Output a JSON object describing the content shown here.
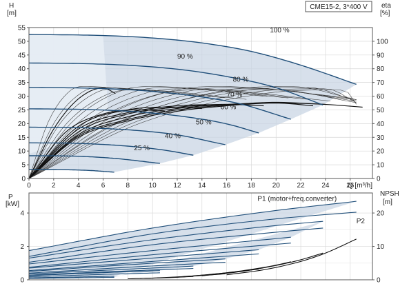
{
  "chart_data": [
    {
      "type": "line",
      "legend_box": "CME15-2, 3*400 V",
      "left_axis": {
        "label": "H",
        "unit": "[m]",
        "ylim": [
          0,
          55
        ],
        "ticks": [
          0,
          5,
          10,
          15,
          20,
          25,
          30,
          35,
          40,
          45,
          50,
          55
        ]
      },
      "right_axis": {
        "label": "eta",
        "unit": "[%]",
        "ylim": [
          0,
          110
        ],
        "ticks": [
          0,
          10,
          20,
          30,
          40,
          50,
          60,
          70,
          80,
          90,
          100
        ]
      },
      "x_axis": {
        "label": "Q [m³/h]",
        "xlim": [
          0,
          27.8
        ],
        "ticks": [
          0,
          2,
          4,
          6,
          8,
          10,
          12,
          14,
          16,
          18,
          20,
          22,
          24,
          26
        ]
      },
      "speed_labels": [
        {
          "text": "100 %",
          "x": 19.5,
          "y": 52.5
        },
        {
          "text": "90 %",
          "x": 12,
          "y": 43
        },
        {
          "text": "80 %",
          "x": 16.5,
          "y": 34.5
        },
        {
          "text": "70 %",
          "x": 16,
          "y": 29
        },
        {
          "text": "60 %",
          "x": 15.5,
          "y": 24.5
        },
        {
          "text": "50 %",
          "x": 13.5,
          "y": 19
        },
        {
          "text": "40 %",
          "x": 11,
          "y": 14
        },
        {
          "text": "25 %",
          "x": 8.5,
          "y": 9.5
        }
      ],
      "head_curves": [
        {
          "speed": "100 %",
          "x": [
            0,
            6,
            10,
            14,
            18,
            22,
            26.5
          ],
          "y": [
            52.5,
            52.1,
            51.2,
            49.4,
            46.3,
            41.3,
            34.3
          ]
        },
        {
          "speed": "90 %",
          "x": [
            0,
            5,
            9,
            13,
            17,
            20,
            23.8
          ],
          "y": [
            42.1,
            41.8,
            41.0,
            39.3,
            36.3,
            33.1,
            26.8
          ]
        },
        {
          "speed": "80 %",
          "x": [
            0,
            5,
            9,
            13,
            17,
            21.2
          ],
          "y": [
            33.2,
            32.9,
            32.1,
            30.3,
            27.3,
            21.6
          ]
        },
        {
          "speed": "70 %",
          "x": [
            0,
            5,
            9,
            13,
            16,
            18.6
          ],
          "y": [
            25.4,
            25.1,
            24.2,
            22.3,
            19.9,
            16.6
          ]
        },
        {
          "speed": "60 %",
          "x": [
            0,
            5,
            9,
            12,
            15.9
          ],
          "y": [
            18.7,
            18.4,
            17.4,
            15.9,
            12.3
          ]
        },
        {
          "speed": "50 %",
          "x": [
            0,
            4,
            8,
            11,
            13.3
          ],
          "y": [
            13.0,
            12.8,
            11.8,
            10.3,
            8.5
          ]
        },
        {
          "speed": "40 %",
          "x": [
            0,
            4,
            7,
            10.6
          ],
          "y": [
            8.3,
            8.1,
            7.3,
            5.5
          ]
        },
        {
          "speed": "25 %",
          "x": [
            0,
            3,
            5,
            6.9
          ],
          "y": [
            3.3,
            3.2,
            2.9,
            2.3
          ]
        }
      ],
      "efficiency_curves": [
        {
          "name": "eta 100 %",
          "x": [
            0,
            4,
            8,
            12,
            16,
            20,
            24,
            27
          ],
          "y": [
            0,
            30,
            42,
            49,
            53,
            55,
            54,
            52
          ]
        },
        {
          "name": "eta 90 %",
          "x": [
            0,
            4,
            8,
            12,
            16,
            20,
            24
          ],
          "y": [
            0,
            31,
            43,
            50,
            53.5,
            55.5,
            54
          ]
        },
        {
          "name": "eta 80 %",
          "x": [
            0,
            4,
            8,
            12,
            16,
            20,
            23
          ],
          "y": [
            0,
            32,
            45,
            51,
            54,
            55,
            53
          ]
        },
        {
          "name": "eta 70 %",
          "x": [
            0,
            4,
            8,
            12,
            16,
            19
          ],
          "y": [
            0,
            34,
            47,
            52,
            54,
            53
          ]
        },
        {
          "name": "eta 60 %",
          "x": [
            0,
            4,
            8,
            12,
            16
          ],
          "y": [
            0,
            36,
            48,
            53,
            54
          ]
        },
        {
          "name": "eta 50 %",
          "x": [
            0,
            4,
            8,
            12,
            14
          ],
          "y": [
            0,
            38,
            50,
            52,
            51
          ]
        },
        {
          "name": "eta 40 %",
          "x": [
            0,
            3,
            6,
            9,
            11
          ],
          "y": [
            0,
            34,
            47,
            50,
            49
          ]
        },
        {
          "name": "eta 25 %",
          "x": [
            0,
            2,
            4,
            6,
            7
          ],
          "y": [
            0,
            36,
            58,
            66,
            62
          ]
        }
      ]
    },
    {
      "type": "line",
      "left_axis": {
        "label": "P",
        "unit": "[kW]",
        "ylim": [
          0,
          5.2
        ],
        "ticks": [
          0,
          2,
          4
        ]
      },
      "right_axis": {
        "label": "NPSH",
        "unit": "[m]",
        "ylim": [
          0,
          26
        ],
        "ticks": [
          0,
          10,
          20
        ]
      },
      "x_axis": {
        "xlim": [
          0,
          27.8
        ]
      },
      "annotations": [
        {
          "text": "P1 (motor+freq.converter)",
          "x": 18.5,
          "y": 4.85
        },
        {
          "text": "P2",
          "x": 26.5,
          "y": 3.5
        }
      ],
      "power_curves": [
        {
          "name": "P1 100 %",
          "x": [
            0,
            10,
            20,
            26.5
          ],
          "y": [
            1.75,
            3.1,
            4.15,
            4.7
          ]
        },
        {
          "name": "P2 100 %",
          "x": [
            0,
            10,
            20,
            26.5
          ],
          "y": [
            1.4,
            2.75,
            3.65,
            4.05
          ]
        },
        {
          "name": "P1 90 %",
          "x": [
            0,
            10,
            20,
            23.8
          ],
          "y": [
            1.3,
            2.4,
            3.25,
            3.5
          ]
        },
        {
          "name": "P2 90 %",
          "x": [
            0,
            10,
            20,
            23.8
          ],
          "y": [
            1.05,
            2.1,
            2.85,
            3.1
          ]
        },
        {
          "name": "P1 80 %",
          "x": [
            0,
            10,
            21.2
          ],
          "y": [
            0.95,
            1.75,
            2.55
          ]
        },
        {
          "name": "P2 80 %",
          "x": [
            0,
            10,
            21.2
          ],
          "y": [
            0.75,
            1.5,
            2.2
          ]
        },
        {
          "name": "P1 70 %",
          "x": [
            0,
            10,
            18.6
          ],
          "y": [
            0.7,
            1.3,
            1.8
          ]
        },
        {
          "name": "P2 70 %",
          "x": [
            0,
            10,
            18.6
          ],
          "y": [
            0.55,
            1.1,
            1.55
          ]
        },
        {
          "name": "P1 60 %",
          "x": [
            0,
            8,
            15.9
          ],
          "y": [
            0.5,
            0.9,
            1.25
          ]
        },
        {
          "name": "P2 60 %",
          "x": [
            0,
            8,
            15.9
          ],
          "y": [
            0.4,
            0.75,
            1.05
          ]
        },
        {
          "name": "P1 50 %",
          "x": [
            0,
            7,
            13.3
          ],
          "y": [
            0.35,
            0.6,
            0.82
          ]
        },
        {
          "name": "P2 50 %",
          "x": [
            0,
            7,
            13.3
          ],
          "y": [
            0.28,
            0.5,
            0.68
          ]
        },
        {
          "name": "P1 40 %",
          "x": [
            0,
            5,
            10.6
          ],
          "y": [
            0.25,
            0.4,
            0.55
          ]
        },
        {
          "name": "P2 40 %",
          "x": [
            0,
            5,
            10.6
          ],
          "y": [
            0.18,
            0.3,
            0.42
          ]
        },
        {
          "name": "P1 25 %",
          "x": [
            0,
            4,
            6.9
          ],
          "y": [
            0.12,
            0.17,
            0.21
          ]
        },
        {
          "name": "P2 25 %",
          "x": [
            0,
            4,
            6.9
          ],
          "y": [
            0.08,
            0.12,
            0.15
          ]
        }
      ],
      "npsh_curves": [
        {
          "name": "NPSH 100 %",
          "x": [
            16,
            19,
            22,
            24,
            26.5
          ],
          "y": [
            1.5,
            3.0,
            5.5,
            8.0,
            12.2
          ]
        },
        {
          "name": "NPSH 90 %",
          "x": [
            14,
            17,
            20,
            22,
            23.8
          ],
          "y": [
            1.2,
            2.4,
            4.3,
            6.0,
            8.0
          ]
        },
        {
          "name": "NPSH 80 %",
          "x": [
            12,
            15,
            18,
            20,
            21.2
          ],
          "y": [
            0.8,
            1.7,
            3.1,
            4.4,
            5.4
          ]
        },
        {
          "name": "NPSH 70 %",
          "x": [
            10,
            13,
            16,
            18.6
          ],
          "y": [
            0.5,
            1.1,
            2.1,
            3.2
          ]
        },
        {
          "name": "NPSH 60 %",
          "x": [
            9,
            12,
            15.9
          ],
          "y": [
            0.4,
            0.8,
            1.8
          ]
        },
        {
          "name": "NPSH 50 %",
          "x": [
            8,
            11,
            13.3
          ],
          "y": [
            0.3,
            0.6,
            1.0
          ]
        }
      ]
    }
  ]
}
